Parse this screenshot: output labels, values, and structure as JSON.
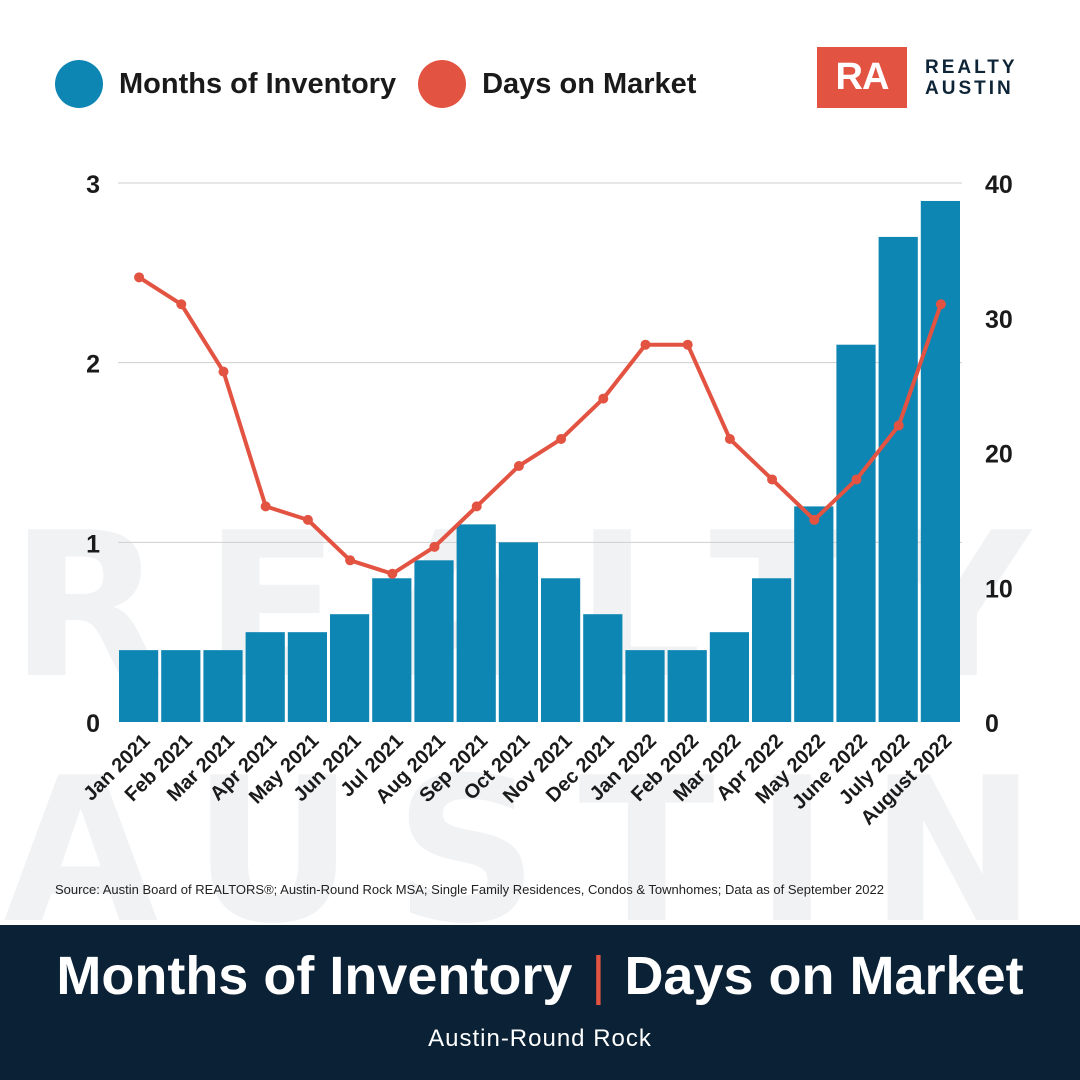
{
  "watermark": {
    "line1": "REALTY",
    "line2": "AUSTIN"
  },
  "legend": [
    {
      "label": "Months of Inventory",
      "color": "#0e86b3"
    },
    {
      "label": "Days on Market",
      "color": "#e35342"
    }
  ],
  "logo": {
    "mark": "RA",
    "line1": "REALTY",
    "line2": "AUSTIN"
  },
  "chart_data": {
    "type": "bar+line",
    "categories": [
      "Jan 2021",
      "Feb 2021",
      "Mar 2021",
      "Apr 2021",
      "May 2021",
      "Jun 2021",
      "Jul 2021",
      "Aug 2021",
      "Sep 2021",
      "Oct 2021",
      "Nov 2021",
      "Dec 2021",
      "Jan 2022",
      "Feb 2022",
      "Mar 2022",
      "Apr 2022",
      "May 2022",
      "June 2022",
      "July 2022",
      "August 2022"
    ],
    "series": [
      {
        "name": "Months of Inventory",
        "type": "bar",
        "axis": "left",
        "color": "#0e86b3",
        "values": [
          0.4,
          0.4,
          0.4,
          0.5,
          0.5,
          0.6,
          0.8,
          0.9,
          1.1,
          1.0,
          0.8,
          0.6,
          0.4,
          0.4,
          0.5,
          0.8,
          1.2,
          2.1,
          2.7,
          2.9
        ]
      },
      {
        "name": "Days on Market",
        "type": "line",
        "axis": "right",
        "color": "#e35342",
        "values": [
          33,
          31,
          26,
          16,
          15,
          12,
          11,
          13,
          16,
          19,
          21,
          24,
          28,
          28,
          21,
          18,
          15,
          18,
          22,
          31
        ]
      }
    ],
    "left_axis": {
      "ylim": [
        0,
        3
      ],
      "ticks": [
        "0",
        "1",
        "2",
        "3"
      ]
    },
    "right_axis": {
      "ylim": [
        0,
        40
      ],
      "ticks": [
        "0",
        "10",
        "20",
        "30",
        "40"
      ]
    },
    "grid": true
  },
  "source": "Source: Austin Board of REALTORS®; Austin-Round Rock MSA; Single Family Residences, Condos & Townhomes; Data as of September 2022",
  "footer": {
    "title_left": "Months of Inventory",
    "separator": "|",
    "title_right": "Days on Market",
    "subtitle": "Austin-Round Rock"
  }
}
